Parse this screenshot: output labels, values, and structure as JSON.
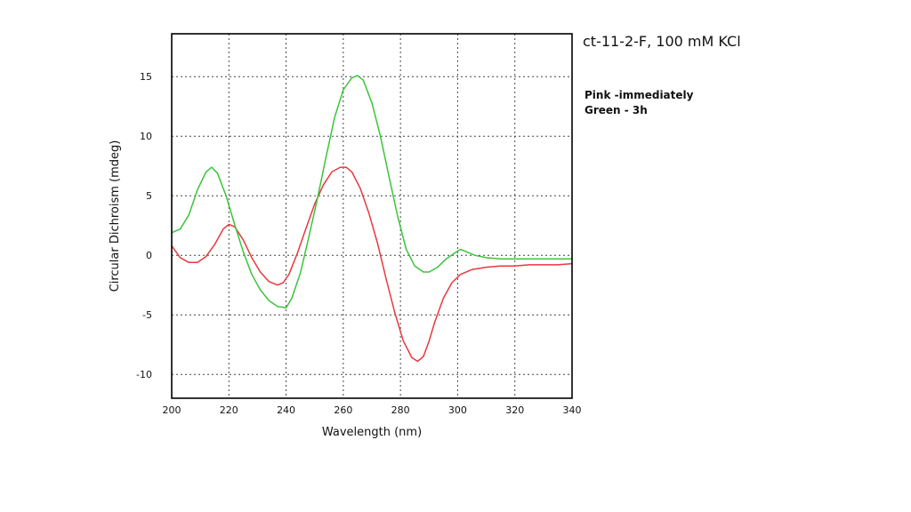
{
  "chart_data": {
    "type": "line",
    "title": "ct-11-2-F, 100 mM KCl",
    "xlabel": "Wavelength (nm)",
    "ylabel": "Circular Dichroism (mdeg)",
    "xlim": [
      200,
      340
    ],
    "ylim": [
      -12,
      18.6
    ],
    "x_ticks": [
      200,
      220,
      240,
      260,
      280,
      300,
      320,
      340
    ],
    "y_ticks": [
      -10,
      -5,
      0,
      5,
      10,
      15
    ],
    "grid": true,
    "legend": "none",
    "annotations": [
      "Pink -immediately",
      "Green - 3h"
    ],
    "series": [
      {
        "color": "#e8383d",
        "x": [
          200,
          203,
          206,
          209,
          212,
          215,
          218,
          220,
          222,
          225,
          228,
          231,
          234,
          237,
          239,
          241,
          244,
          247,
          250,
          253,
          256,
          259,
          261,
          263,
          266,
          269,
          272,
          275,
          278,
          281,
          284,
          286,
          288,
          290,
          292,
          295,
          298,
          301,
          305,
          310,
          315,
          320,
          325,
          330,
          335,
          340
        ],
        "y": [
          0.8,
          -0.2,
          -0.6,
          -0.6,
          -0.1,
          0.9,
          2.2,
          2.6,
          2.4,
          1.3,
          -0.2,
          -1.4,
          -2.2,
          -2.5,
          -2.3,
          -1.6,
          0.2,
          2.3,
          4.3,
          5.9,
          7.0,
          7.4,
          7.4,
          7.0,
          5.6,
          3.5,
          1.0,
          -2.0,
          -4.8,
          -7.2,
          -8.6,
          -8.9,
          -8.5,
          -7.2,
          -5.6,
          -3.6,
          -2.3,
          -1.6,
          -1.2,
          -1.0,
          -0.9,
          -0.9,
          -0.8,
          -0.8,
          -0.8,
          -0.7
        ]
      },
      {
        "color": "#3cc43c",
        "x": [
          200,
          203,
          206,
          209,
          212,
          214,
          216,
          219,
          222,
          225,
          228,
          231,
          234,
          237,
          240,
          242,
          245,
          248,
          251,
          254,
          257,
          260,
          263,
          265,
          267,
          270,
          273,
          276,
          279,
          282,
          285,
          288,
          290,
          293,
          296,
          299,
          301,
          303,
          306,
          310,
          315,
          320,
          330,
          340
        ],
        "y": [
          1.9,
          2.2,
          3.4,
          5.5,
          7.0,
          7.4,
          6.9,
          5.0,
          2.6,
          0.3,
          -1.6,
          -2.9,
          -3.8,
          -4.3,
          -4.4,
          -3.6,
          -1.5,
          1.6,
          4.8,
          8.3,
          11.6,
          13.9,
          14.9,
          15.1,
          14.7,
          12.8,
          10.0,
          6.6,
          3.3,
          0.5,
          -0.9,
          -1.4,
          -1.4,
          -1.0,
          -0.3,
          0.2,
          0.5,
          0.3,
          0.0,
          -0.2,
          -0.3,
          -0.3,
          -0.3,
          -0.3
        ]
      }
    ]
  }
}
